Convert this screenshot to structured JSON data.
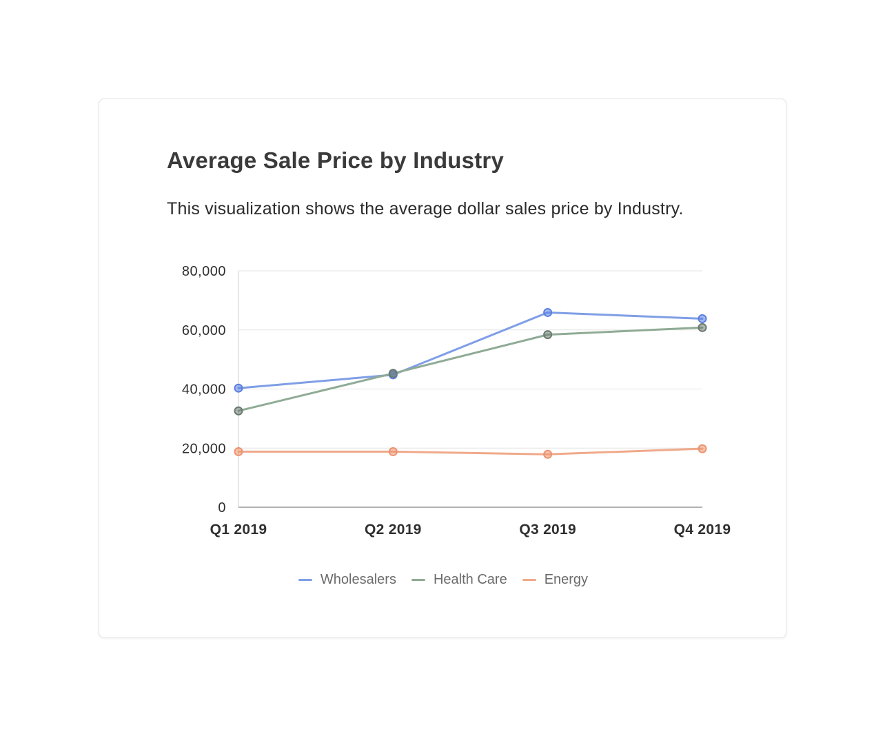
{
  "card": {
    "title": "Average Sale Price by Industry",
    "description": "This visualization shows the average dollar sales price by Industry."
  },
  "chart_data": {
    "type": "line",
    "title": "Average Sale Price by Industry",
    "subtitle": "This visualization shows the average dollar sales price by Industry.",
    "xlabel": "",
    "ylabel": "",
    "categories": [
      "Q1 2019",
      "Q2 2019",
      "Q3 2019",
      "Q4 2019"
    ],
    "ylim": [
      0,
      80000
    ],
    "yticks": [
      0,
      20000,
      40000,
      60000,
      80000
    ],
    "ytick_labels": [
      "0",
      "20,000",
      "40,000",
      "60,000",
      "80,000"
    ],
    "grid": true,
    "legend_position": "bottom",
    "series": [
      {
        "name": "Wholesalers",
        "color": "#7f9ee6",
        "point_color": "#5a80e0",
        "values": [
          40300,
          44800,
          65900,
          63800
        ]
      },
      {
        "name": "Health Care",
        "color": "#8fab95",
        "point_color": "#6b7a70",
        "values": [
          32600,
          45300,
          58400,
          60800
        ]
      },
      {
        "name": "Energy",
        "color": "#f0a98a",
        "point_color": "#ec9470",
        "values": [
          18800,
          18800,
          17900,
          19800
        ]
      }
    ]
  }
}
